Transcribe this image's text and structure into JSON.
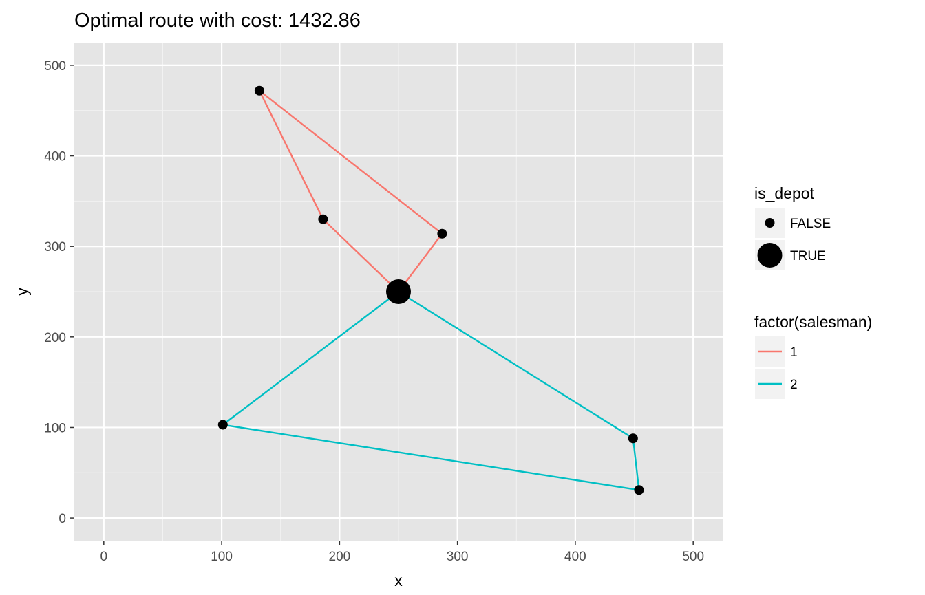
{
  "chart_data": {
    "type": "scatter",
    "title": "Optimal route with cost: 1432.86",
    "xlabel": "x",
    "ylabel": "y",
    "xlim": [
      -25,
      525
    ],
    "ylim": [
      -25,
      525
    ],
    "x_ticks": [
      0,
      100,
      200,
      300,
      400,
      500
    ],
    "y_ticks": [
      0,
      100,
      200,
      300,
      400,
      500
    ],
    "x_tick_labels": [
      "0",
      "100",
      "200",
      "300",
      "400",
      "500"
    ],
    "y_tick_labels": [
      "0",
      "100",
      "200",
      "300",
      "400",
      "500"
    ],
    "grid": true,
    "legend_position": "right",
    "points": [
      {
        "x": 250,
        "y": 250,
        "is_depot": true
      },
      {
        "x": 132,
        "y": 472,
        "is_depot": false
      },
      {
        "x": 186,
        "y": 330,
        "is_depot": false
      },
      {
        "x": 287,
        "y": 314,
        "is_depot": false
      },
      {
        "x": 101,
        "y": 103,
        "is_depot": false
      },
      {
        "x": 449,
        "y": 88,
        "is_depot": false
      },
      {
        "x": 454,
        "y": 31,
        "is_depot": false
      }
    ],
    "series": [
      {
        "name": "1",
        "color": "#f8766d",
        "route": [
          {
            "x": 250,
            "y": 250
          },
          {
            "x": 186,
            "y": 330
          },
          {
            "x": 132,
            "y": 472
          },
          {
            "x": 287,
            "y": 314
          },
          {
            "x": 250,
            "y": 250
          }
        ]
      },
      {
        "name": "2",
        "color": "#00bfc4",
        "route": [
          {
            "x": 250,
            "y": 250
          },
          {
            "x": 101,
            "y": 103
          },
          {
            "x": 454,
            "y": 31
          },
          {
            "x": 449,
            "y": 88
          },
          {
            "x": 250,
            "y": 250
          }
        ]
      }
    ],
    "legends": {
      "is_depot": {
        "title": "is_depot",
        "entries": [
          {
            "label": "FALSE",
            "is_depot": false
          },
          {
            "label": "TRUE",
            "is_depot": true
          }
        ]
      },
      "salesman": {
        "title": "factor(salesman)",
        "entries": [
          {
            "label": "1",
            "color": "#f8766d"
          },
          {
            "label": "2",
            "color": "#00bfc4"
          }
        ]
      }
    }
  }
}
